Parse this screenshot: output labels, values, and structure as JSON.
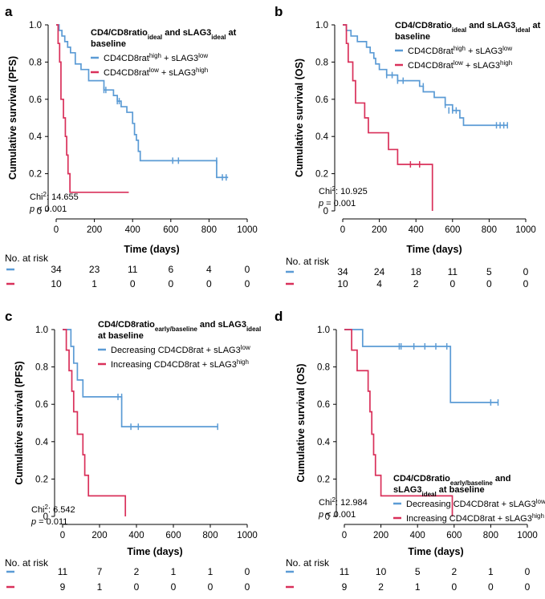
{
  "colors": {
    "blue": "#5b9bd5",
    "red": "#d9305a",
    "axis": "#000000"
  },
  "risk_title": "No. at risk",
  "chart_data": [
    {
      "panel": "a",
      "type": "line",
      "ylabel": "Cumulative survival (PFS)",
      "xlabel": "Time (days)",
      "xlim": [
        0,
        1000
      ],
      "ylim": [
        0,
        1.0
      ],
      "xticks": [
        0,
        200,
        400,
        600,
        800,
        1000
      ],
      "yticks": [
        0,
        0.2,
        0.4,
        0.6,
        0.8,
        1.0
      ],
      "ytick_labels": [
        "0",
        "0.2",
        "0.4",
        "0.6",
        "0.8",
        "1.0"
      ],
      "legend": {
        "title_main": "CD4/CD8ratio",
        "title_sub": "ideal",
        "title_mid": " and sLAG3",
        "title_sub2": "ideal",
        "title_end": " at",
        "title_line2": "baseline"
      },
      "series": [
        {
          "name_base": "CD4CD8rat",
          "name_sup1": "high",
          "name_mid": " + sLAG3",
          "name_sup2": "low",
          "color": "blue",
          "steps": [
            [
              0,
              1.0
            ],
            [
              15,
              0.97
            ],
            [
              30,
              0.94
            ],
            [
              45,
              0.91
            ],
            [
              60,
              0.88
            ],
            [
              75,
              0.85
            ],
            [
              100,
              0.79
            ],
            [
              130,
              0.76
            ],
            [
              170,
              0.7
            ],
            [
              250,
              0.65
            ],
            [
              300,
              0.62
            ],
            [
              320,
              0.59
            ],
            [
              340,
              0.56
            ],
            [
              370,
              0.53
            ],
            [
              400,
              0.47
            ],
            [
              410,
              0.41
            ],
            [
              420,
              0.38
            ],
            [
              430,
              0.32
            ],
            [
              440,
              0.27
            ],
            [
              840,
              0.18
            ],
            [
              900,
              0.18
            ]
          ],
          "censors": [
            [
              250,
              0.65
            ],
            [
              260,
              0.65
            ],
            [
              320,
              0.59
            ],
            [
              330,
              0.59
            ],
            [
              610,
              0.27
            ],
            [
              640,
              0.27
            ],
            [
              840,
              0.27
            ],
            [
              870,
              0.18
            ],
            [
              890,
              0.18
            ]
          ]
        },
        {
          "name_base": "CD4CD8rat",
          "name_sup1": "low",
          "name_mid": " + sLAG3",
          "name_sup2": "high",
          "color": "red",
          "steps": [
            [
              0,
              1.0
            ],
            [
              10,
              0.9
            ],
            [
              18,
              0.8
            ],
            [
              25,
              0.6
            ],
            [
              38,
              0.5
            ],
            [
              48,
              0.4
            ],
            [
              55,
              0.3
            ],
            [
              62,
              0.2
            ],
            [
              72,
              0.1
            ],
            [
              380,
              0.1
            ]
          ],
          "censors": []
        }
      ],
      "stat": {
        "chi_label": "Chi",
        "chi_sup": "2",
        "chi_value": ":  14.655",
        "p_label": "p",
        "p_value": " < 0.001"
      },
      "risk": {
        "times": [
          0,
          200,
          400,
          600,
          800,
          1000
        ],
        "rows": [
          [
            34,
            23,
            11,
            6,
            4,
            0
          ],
          [
            10,
            1,
            0,
            0,
            0,
            0
          ]
        ]
      }
    },
    {
      "panel": "b",
      "type": "line",
      "ylabel": "Cumulative survival (OS)",
      "xlabel": "Time (days)",
      "xlim": [
        0,
        1000
      ],
      "ylim": [
        0,
        1.0
      ],
      "xticks": [
        0,
        200,
        400,
        600,
        800,
        1000
      ],
      "yticks": [
        0,
        0.2,
        0.4,
        0.6,
        0.8,
        1.0
      ],
      "ytick_labels": [
        "0",
        "0.2",
        "0.4",
        "0.6",
        "0.8",
        "1.0"
      ],
      "legend": {
        "title_main": "CD4/CD8ratio",
        "title_sub": "ideal",
        "title_mid": " and sLAG3",
        "title_sub2": "ideal",
        "title_end": " at",
        "title_line2": "baseline"
      },
      "series": [
        {
          "name_base": "CD4CD8rat",
          "name_sup1": "high",
          "name_mid": " + sLAG3",
          "name_sup2": "low",
          "color": "blue",
          "steps": [
            [
              0,
              1.0
            ],
            [
              20,
              0.97
            ],
            [
              45,
              0.94
            ],
            [
              80,
              0.91
            ],
            [
              130,
              0.88
            ],
            [
              150,
              0.85
            ],
            [
              170,
              0.82
            ],
            [
              180,
              0.79
            ],
            [
              200,
              0.76
            ],
            [
              240,
              0.73
            ],
            [
              300,
              0.7
            ],
            [
              420,
              0.67
            ],
            [
              440,
              0.64
            ],
            [
              500,
              0.61
            ],
            [
              560,
              0.57
            ],
            [
              600,
              0.54
            ],
            [
              640,
              0.5
            ],
            [
              660,
              0.46
            ],
            [
              900,
              0.46
            ]
          ],
          "censors": [
            [
              240,
              0.73
            ],
            [
              270,
              0.73
            ],
            [
              300,
              0.7
            ],
            [
              330,
              0.7
            ],
            [
              440,
              0.67
            ],
            [
              560,
              0.57
            ],
            [
              580,
              0.54
            ],
            [
              600,
              0.54
            ],
            [
              620,
              0.54
            ],
            [
              840,
              0.46
            ],
            [
              860,
              0.46
            ],
            [
              880,
              0.46
            ],
            [
              900,
              0.46
            ]
          ]
        },
        {
          "name_base": "CD4CD8rat",
          "name_sup1": "low",
          "name_mid": " + sLAG3",
          "name_sup2": "high",
          "color": "red",
          "steps": [
            [
              0,
              1.0
            ],
            [
              20,
              0.9
            ],
            [
              30,
              0.8
            ],
            [
              55,
              0.7
            ],
            [
              70,
              0.58
            ],
            [
              120,
              0.5
            ],
            [
              140,
              0.42
            ],
            [
              250,
              0.33
            ],
            [
              300,
              0.25
            ],
            [
              490,
              0.25
            ],
            [
              490,
              0.0
            ]
          ],
          "censors": [
            [
              370,
              0.25
            ],
            [
              420,
              0.25
            ]
          ]
        }
      ],
      "stat": {
        "chi_label": "Chi",
        "chi_sup": "2",
        "chi_value": ": 10.925",
        "p_label": "p",
        "p_value": " = 0.001"
      },
      "risk": {
        "times": [
          0,
          200,
          400,
          600,
          800,
          1000
        ],
        "rows": [
          [
            34,
            24,
            18,
            11,
            5,
            0
          ],
          [
            10,
            4,
            2,
            0,
            0,
            0
          ]
        ]
      }
    },
    {
      "panel": "c",
      "type": "line",
      "ylabel": "Cumulative survival (PFS)",
      "xlabel": "Time (days)",
      "xlim": [
        0,
        1000
      ],
      "ylim": [
        0,
        1.0
      ],
      "xticks": [
        0,
        200,
        400,
        600,
        800,
        1000
      ],
      "yticks": [
        0,
        0.2,
        0.4,
        0.6,
        0.8,
        1.0
      ],
      "ytick_labels": [
        "0",
        "0.2",
        "0.4",
        "0.6",
        "0.8",
        "1.0"
      ],
      "legend": {
        "title_main": "CD4/CD8ratio",
        "title_sub": "early/baseline",
        "title_mid": " and sLAG3",
        "title_sub2": "ideal",
        "title_end": "",
        "title_line2": "at baseline"
      },
      "series": [
        {
          "name_base": "Decreasing CD4CD8rat + sLAG3",
          "name_sup1": "",
          "name_mid": "",
          "name_sup2": "low",
          "color": "blue",
          "steps": [
            [
              0,
              1.0
            ],
            [
              45,
              0.91
            ],
            [
              60,
              0.82
            ],
            [
              80,
              0.73
            ],
            [
              110,
              0.64
            ],
            [
              310,
              0.64
            ],
            [
              320,
              0.48
            ],
            [
              840,
              0.48
            ]
          ],
          "censors": [
            [
              300,
              0.64
            ],
            [
              320,
              0.64
            ],
            [
              370,
              0.48
            ],
            [
              410,
              0.48
            ],
            [
              840,
              0.48
            ]
          ]
        },
        {
          "name_base": "Increasing CD4CD8rat + sLAG3",
          "name_sup1": "",
          "name_mid": "",
          "name_sup2": "high",
          "color": "red",
          "steps": [
            [
              0,
              1.0
            ],
            [
              20,
              0.89
            ],
            [
              35,
              0.78
            ],
            [
              50,
              0.67
            ],
            [
              60,
              0.56
            ],
            [
              80,
              0.44
            ],
            [
              110,
              0.33
            ],
            [
              120,
              0.22
            ],
            [
              140,
              0.11
            ],
            [
              340,
              0.11
            ],
            [
              340,
              0.0
            ]
          ],
          "censors": []
        }
      ],
      "stat": {
        "chi_label": "Chi",
        "chi_sup": "2",
        "chi_value": ":  6.542",
        "p_label": "p",
        "p_value": " = 0.011"
      },
      "risk": {
        "times": [
          0,
          200,
          400,
          600,
          800,
          1000
        ],
        "rows": [
          [
            11,
            7,
            2,
            1,
            1,
            0
          ],
          [
            9,
            1,
            0,
            0,
            0,
            0
          ]
        ]
      }
    },
    {
      "panel": "d",
      "type": "line",
      "ylabel": "Cumulative survival (OS)",
      "xlabel": "Time (days)",
      "xlim": [
        0,
        1000
      ],
      "ylim": [
        0,
        1.0
      ],
      "xticks": [
        0,
        200,
        400,
        600,
        800,
        1000
      ],
      "yticks": [
        0,
        0.2,
        0.4,
        0.6,
        0.8,
        1.0
      ],
      "ytick_labels": [
        "0",
        "0.2",
        "0.4",
        "0.6",
        "0.8",
        "1.0"
      ],
      "legend": {
        "title_main": "CD4/CD8ratio",
        "title_sub": "early/baseline",
        "title_mid": " and",
        "title_sub2": "",
        "title_end": "",
        "title_line2_main": "sLAG3",
        "title_line2_sub": "ideal",
        "title_line2_end": " at baseline"
      },
      "series": [
        {
          "name_base": "Decreasing CD4CD8rat + sLAG3",
          "name_sup1": "",
          "name_mid": "",
          "name_sup2": "low",
          "color": "blue",
          "steps": [
            [
              0,
              1.0
            ],
            [
              100,
              0.91
            ],
            [
              580,
              0.91
            ],
            [
              580,
              0.61
            ],
            [
              840,
              0.61
            ]
          ],
          "censors": [
            [
              300,
              0.91
            ],
            [
              310,
              0.91
            ],
            [
              380,
              0.91
            ],
            [
              440,
              0.91
            ],
            [
              500,
              0.91
            ],
            [
              560,
              0.91
            ],
            [
              800,
              0.61
            ],
            [
              840,
              0.61
            ]
          ]
        },
        {
          "name_base": "Increasing CD4CD8rat + sLAG3",
          "name_sup1": "",
          "name_mid": "",
          "name_sup2": "high",
          "color": "red",
          "steps": [
            [
              0,
              1.0
            ],
            [
              40,
              0.89
            ],
            [
              70,
              0.78
            ],
            [
              130,
              0.67
            ],
            [
              140,
              0.56
            ],
            [
              150,
              0.44
            ],
            [
              160,
              0.33
            ],
            [
              170,
              0.22
            ],
            [
              200,
              0.11
            ],
            [
              590,
              0.11
            ],
            [
              590,
              0.0
            ]
          ],
          "censors": []
        }
      ],
      "stat": {
        "chi_label": "Chi",
        "chi_sup": "2",
        "chi_value": ": 12.984",
        "p_label": "p",
        "p_value": " < 0.001"
      },
      "risk": {
        "times": [
          0,
          200,
          400,
          600,
          800,
          1000
        ],
        "rows": [
          [
            11,
            10,
            5,
            2,
            1,
            0
          ],
          [
            9,
            2,
            1,
            0,
            0,
            0
          ]
        ]
      }
    }
  ]
}
